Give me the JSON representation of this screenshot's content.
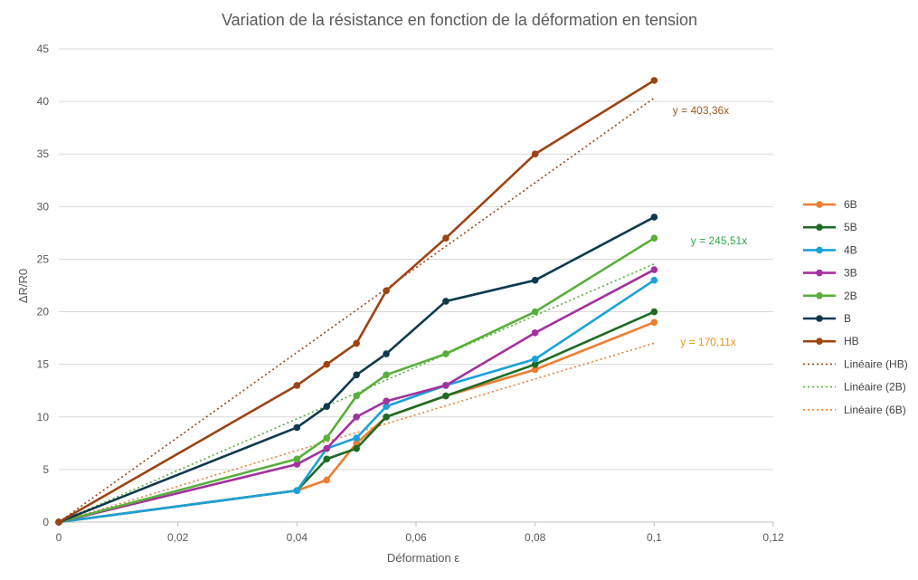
{
  "chart_data": {
    "type": "line",
    "title": "Variation de la résistance en fonction de la déformation en tension",
    "xlabel": "Déformation ε",
    "ylabel": "ΔR/R0",
    "xlim": [
      0,
      0.12
    ],
    "ylim": [
      0,
      45
    ],
    "x_ticks": [
      0,
      0.02,
      0.04,
      0.06,
      0.08,
      0.1,
      0.12
    ],
    "x_tick_labels": [
      "0",
      "0,02",
      "0,04",
      "0,06",
      "0,08",
      "0,1",
      "0,12"
    ],
    "y_ticks": [
      0,
      5,
      10,
      15,
      20,
      25,
      30,
      35,
      40,
      45
    ],
    "y_tick_labels": [
      "0",
      "5",
      "10",
      "15",
      "20",
      "25",
      "30",
      "35",
      "40",
      "45"
    ],
    "grid": "horizontal",
    "legend_position": "right",
    "series": [
      {
        "name": "6B",
        "color": "#ED7D31",
        "points": [
          [
            0,
            0
          ],
          [
            0.04,
            3
          ],
          [
            0.045,
            4
          ],
          [
            0.05,
            7.5
          ],
          [
            0.055,
            10
          ],
          [
            0.065,
            12
          ],
          [
            0.08,
            14.5
          ],
          [
            0.1,
            19
          ]
        ]
      },
      {
        "name": "5B",
        "color": "#1E6B24",
        "points": [
          [
            0,
            0
          ],
          [
            0.04,
            3
          ],
          [
            0.045,
            6
          ],
          [
            0.05,
            7
          ],
          [
            0.055,
            10
          ],
          [
            0.065,
            12
          ],
          [
            0.08,
            15
          ],
          [
            0.1,
            20
          ]
        ]
      },
      {
        "name": "4B",
        "color": "#1CA1D8",
        "points": [
          [
            0,
            0
          ],
          [
            0.04,
            3
          ],
          [
            0.045,
            7
          ],
          [
            0.05,
            8
          ],
          [
            0.055,
            11
          ],
          [
            0.065,
            13
          ],
          [
            0.08,
            15.5
          ],
          [
            0.1,
            23
          ]
        ]
      },
      {
        "name": "3B",
        "color": "#A3319F",
        "points": [
          [
            0,
            0
          ],
          [
            0.04,
            5.5
          ],
          [
            0.045,
            7
          ],
          [
            0.05,
            10
          ],
          [
            0.055,
            11.5
          ],
          [
            0.065,
            13
          ],
          [
            0.08,
            18
          ],
          [
            0.1,
            24
          ]
        ]
      },
      {
        "name": "2B",
        "color": "#58AF3A",
        "points": [
          [
            0,
            0
          ],
          [
            0.04,
            6
          ],
          [
            0.045,
            8
          ],
          [
            0.05,
            12
          ],
          [
            0.055,
            14
          ],
          [
            0.065,
            16
          ],
          [
            0.08,
            20
          ],
          [
            0.1,
            27
          ]
        ]
      },
      {
        "name": "B",
        "color": "#0F3A4E",
        "points": [
          [
            0,
            0
          ],
          [
            0.04,
            9
          ],
          [
            0.045,
            11
          ],
          [
            0.05,
            14
          ],
          [
            0.055,
            16
          ],
          [
            0.065,
            21
          ],
          [
            0.08,
            23
          ],
          [
            0.1,
            29
          ]
        ]
      },
      {
        "name": "HB",
        "color": "#9C4413",
        "points": [
          [
            0,
            0
          ],
          [
            0.04,
            13
          ],
          [
            0.045,
            15
          ],
          [
            0.05,
            17
          ],
          [
            0.055,
            22
          ],
          [
            0.065,
            27
          ],
          [
            0.08,
            35
          ],
          [
            0.1,
            42
          ]
        ]
      }
    ],
    "trendlines": [
      {
        "name": "Linéaire (HB)",
        "color": "#9C4413",
        "slope": 403.36,
        "x_range": [
          0,
          0.1
        ],
        "label": "y = 403,36x",
        "label_color": "#9C5A22"
      },
      {
        "name": "Linéaire (2B)",
        "color": "#58AF3A",
        "slope": 245.51,
        "x_range": [
          0,
          0.1
        ],
        "label": "y = 245,51x",
        "label_color": "#2EA84A"
      },
      {
        "name": "Linéaire (6B)",
        "color": "#ED7D31",
        "slope": 170.11,
        "x_range": [
          0,
          0.1
        ],
        "label": "y = 170,11x",
        "label_color": "#E8941A"
      }
    ]
  }
}
